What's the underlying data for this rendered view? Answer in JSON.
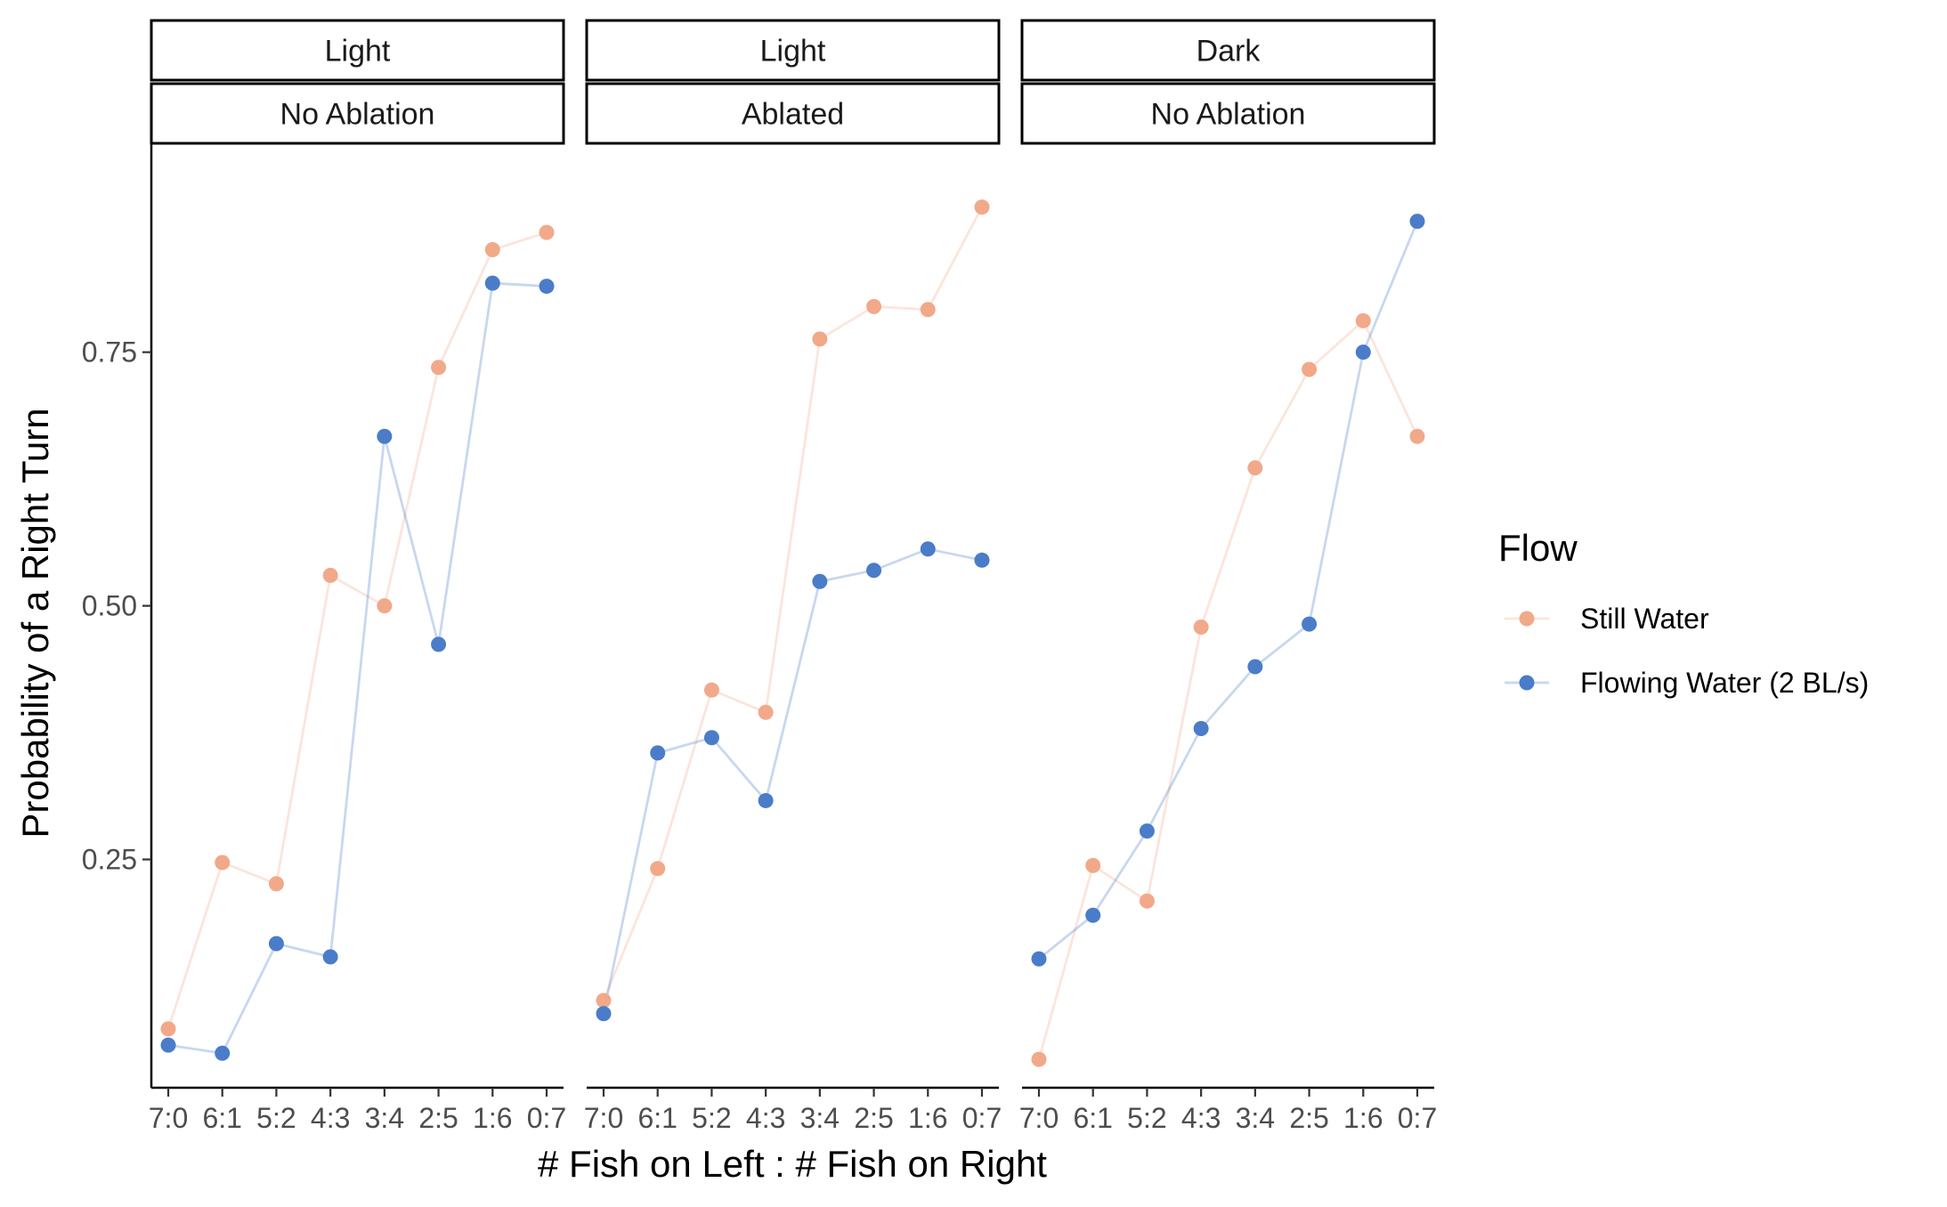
{
  "chart_data": {
    "type": "line",
    "xlabel": "# Fish on Left : # Fish on Right",
    "ylabel": "Probability of a Right Turn",
    "ylim": [
      0.025,
      0.955
    ],
    "yticks": [
      0.25,
      0.5,
      0.75
    ],
    "ytick_labels": [
      "0.25",
      "0.50",
      "0.75"
    ],
    "categories": [
      "7:0",
      "6:1",
      "5:2",
      "4:3",
      "3:4",
      "2:5",
      "1:6",
      "0:7"
    ],
    "grid": false,
    "legend": {
      "title": "Flow",
      "position": "right",
      "entries": [
        "Still Water",
        "Flowing Water (2 BL/s)"
      ]
    },
    "series_colors": {
      "Still Water": "#F1A98A",
      "Flowing Water (2 BL/s)": "#4A7CC9"
    },
    "panels": [
      {
        "strip_top": "Light",
        "strip_bottom": "No Ablation",
        "series": [
          {
            "name": "Still Water",
            "values": [
              0.083,
              0.247,
              0.226,
              0.53,
              0.5,
              0.735,
              0.851,
              0.868
            ]
          },
          {
            "name": "Flowing Water (2 BL/s)",
            "values": [
              0.067,
              0.059,
              0.167,
              0.154,
              0.667,
              0.462,
              0.818,
              0.815
            ]
          }
        ]
      },
      {
        "strip_top": "Light",
        "strip_bottom": "Ablated",
        "series": [
          {
            "name": "Still Water",
            "values": [
              0.111,
              0.241,
              0.417,
              0.395,
              0.763,
              0.795,
              0.792,
              0.893
            ]
          },
          {
            "name": "Flowing Water (2 BL/s)",
            "values": [
              0.098,
              0.355,
              0.37,
              0.308,
              0.524,
              0.535,
              0.556,
              0.545
            ]
          }
        ]
      },
      {
        "strip_top": "Dark",
        "strip_bottom": "No Ablation",
        "series": [
          {
            "name": "Still Water",
            "values": [
              0.053,
              0.244,
              0.209,
              0.479,
              0.636,
              0.733,
              0.781,
              0.667
            ]
          },
          {
            "name": "Flowing Water (2 BL/s)",
            "values": [
              0.152,
              0.195,
              0.278,
              0.379,
              0.44,
              0.482,
              0.75,
              0.879
            ]
          }
        ]
      }
    ]
  }
}
